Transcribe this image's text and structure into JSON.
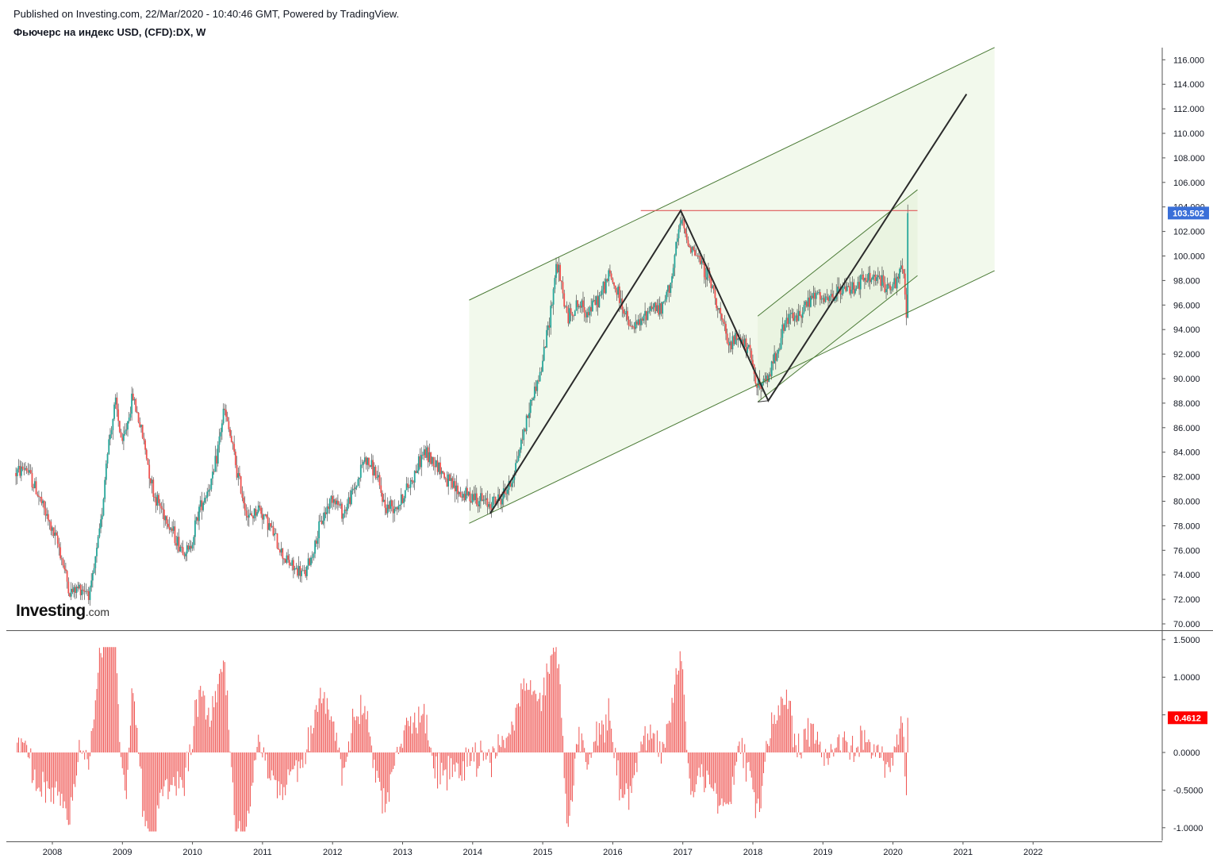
{
  "header": {
    "published": "Published on Investing.com, 22/Mar/2020 - 10:40:46 GMT, Powered by TradingView.",
    "symbol": "Фьючерс на индекс USD, (CFD):DX, W"
  },
  "logo": {
    "main": "Investing",
    "suffix": ".com"
  },
  "colors": {
    "up_candle": "#26a69a",
    "down_candle": "#ef5350",
    "channel_line": "#4a7a35",
    "channel_fill": "#eef7e6",
    "resistance_line": "#e05a5a",
    "pattern_line": "#2b2b2b",
    "price_badge": "#3a6fd8",
    "osc_badge": "#ff0000",
    "osc_bars": "#ef5350"
  },
  "chart_data": [
    {
      "type": "candlestick",
      "name": "Фьючерс на индекс USD, (CFD):DX, W",
      "timeframe": "W",
      "ylim": [
        69.5,
        117.2
      ],
      "xlim": [
        2007.45,
        2023.0
      ],
      "yticks": [
        70,
        72,
        74,
        76,
        78,
        80,
        82,
        84,
        86,
        88,
        90,
        92,
        94,
        96,
        98,
        100,
        102,
        104,
        106,
        108,
        110,
        112,
        114,
        116
      ],
      "ytick_labels": [
        "70.000",
        "72.000",
        "74.000",
        "76.000",
        "78.000",
        "80.000",
        "82.000",
        "84.000",
        "86.000",
        "88.000",
        "90.000",
        "92.000",
        "94.000",
        "96.000",
        "98.000",
        "100.000",
        "102.000",
        "104.000",
        "106.000",
        "108.000",
        "110.000",
        "112.000",
        "114.000",
        "116.000"
      ],
      "xticks": [
        2008,
        2009,
        2010,
        2011,
        2012,
        2013,
        2014,
        2015,
        2016,
        2017,
        2018,
        2019,
        2020,
        2021,
        2022
      ],
      "xtick_labels": [
        "2008",
        "2009",
        "2010",
        "2011",
        "2012",
        "2013",
        "2014",
        "2015",
        "2016",
        "2017",
        "2018",
        "2019",
        "2020",
        "2021",
        "2022"
      ],
      "last_price": 103.502,
      "last_price_label": "103.502",
      "price_path": [
        [
          2007.48,
          82.3
        ],
        [
          2007.62,
          82.8
        ],
        [
          2007.8,
          80.5
        ],
        [
          2008.0,
          77.5
        ],
        [
          2008.1,
          76.2
        ],
        [
          2008.25,
          72.5
        ],
        [
          2008.4,
          73.0
        ],
        [
          2008.55,
          72.6
        ],
        [
          2008.7,
          78.5
        ],
        [
          2008.78,
          84.0
        ],
        [
          2008.9,
          88.0
        ],
        [
          2009.0,
          84.5
        ],
        [
          2009.15,
          88.6
        ],
        [
          2009.3,
          85.0
        ],
        [
          2009.45,
          80.5
        ],
        [
          2009.6,
          79.0
        ],
        [
          2009.8,
          76.5
        ],
        [
          2009.95,
          75.8
        ],
        [
          2010.1,
          79.5
        ],
        [
          2010.3,
          82.0
        ],
        [
          2010.45,
          87.5
        ],
        [
          2010.55,
          85.0
        ],
        [
          2010.65,
          82.0
        ],
        [
          2010.8,
          78.5
        ],
        [
          2010.95,
          79.5
        ],
        [
          2011.1,
          78.0
        ],
        [
          2011.3,
          75.5
        ],
        [
          2011.45,
          74.5
        ],
        [
          2011.6,
          74.0
        ],
        [
          2011.7,
          75.5
        ],
        [
          2011.85,
          78.5
        ],
        [
          2012.0,
          80.5
        ],
        [
          2012.15,
          79.0
        ],
        [
          2012.35,
          81.5
        ],
        [
          2012.45,
          83.5
        ],
        [
          2012.6,
          82.5
        ],
        [
          2012.75,
          79.5
        ],
        [
          2012.95,
          79.8
        ],
        [
          2013.15,
          82.0
        ],
        [
          2013.3,
          84.0
        ],
        [
          2013.5,
          83.0
        ],
        [
          2013.65,
          81.5
        ],
        [
          2013.85,
          80.5
        ],
        [
          2014.0,
          80.5
        ],
        [
          2014.2,
          79.8
        ],
        [
          2014.4,
          80.2
        ],
        [
          2014.55,
          81.5
        ],
        [
          2014.7,
          85.0
        ],
        [
          2014.85,
          88.5
        ],
        [
          2014.97,
          90.5
        ],
        [
          2015.1,
          95.0
        ],
        [
          2015.2,
          99.5
        ],
        [
          2015.35,
          95.0
        ],
        [
          2015.5,
          96.0
        ],
        [
          2015.65,
          95.5
        ],
        [
          2015.8,
          96.5
        ],
        [
          2015.95,
          98.5
        ],
        [
          2016.1,
          96.5
        ],
        [
          2016.25,
          94.0
        ],
        [
          2016.4,
          94.5
        ],
        [
          2016.55,
          96.0
        ],
        [
          2016.7,
          95.5
        ],
        [
          2016.85,
          98.5
        ],
        [
          2016.97,
          103.0
        ],
        [
          2017.05,
          101.5
        ],
        [
          2017.2,
          100.0
        ],
        [
          2017.35,
          98.5
        ],
        [
          2017.5,
          96.0
        ],
        [
          2017.65,
          92.5
        ],
        [
          2017.8,
          93.5
        ],
        [
          2017.95,
          92.0
        ],
        [
          2018.08,
          89.3
        ],
        [
          2018.2,
          89.8
        ],
        [
          2018.35,
          92.5
        ],
        [
          2018.5,
          95.0
        ],
        [
          2018.6,
          94.8
        ],
        [
          2018.75,
          96.0
        ],
        [
          2018.9,
          96.8
        ],
        [
          2019.05,
          96.2
        ],
        [
          2019.2,
          97.0
        ],
        [
          2019.4,
          97.5
        ],
        [
          2019.6,
          98.0
        ],
        [
          2019.75,
          98.3
        ],
        [
          2019.9,
          97.5
        ],
        [
          2020.05,
          97.5
        ],
        [
          2020.12,
          99.2
        ],
        [
          2020.17,
          97.8
        ],
        [
          2020.19,
          95.0
        ],
        [
          2020.21,
          98.5
        ],
        [
          2020.22,
          103.5
        ]
      ],
      "drawings": {
        "outer_channel": {
          "upper": [
            [
              2013.95,
              96.4
            ],
            [
              2021.45,
              117.0
            ]
          ],
          "lower": [
            [
              2013.95,
              78.2
            ],
            [
              2021.45,
              98.8
            ]
          ]
        },
        "inner_channel": {
          "upper": [
            [
              2018.07,
              95.1
            ],
            [
              2020.35,
              105.4
            ]
          ],
          "lower": [
            [
              2018.07,
              88.1
            ],
            [
              2020.35,
              98.4
            ]
          ]
        },
        "resistance": {
          "from": [
            2016.4,
            103.7
          ],
          "to": [
            2020.35,
            103.7
          ]
        },
        "pattern": [
          [
            2014.25,
            79.0
          ],
          [
            2016.97,
            103.7
          ],
          [
            2018.22,
            88.2
          ],
          [
            2021.05,
            113.2
          ]
        ]
      }
    },
    {
      "type": "bar",
      "name": "oscillator",
      "ylim": [
        -1.15,
        1.55
      ],
      "yticks": [
        -1.0,
        -0.5,
        0.0,
        0.5,
        1.0,
        1.5
      ],
      "ytick_labels": [
        "-1.0000",
        "-0.5000",
        "0.0000",
        "0.5000",
        "1.0000",
        "1.5000"
      ],
      "last_value": 0.4612,
      "last_value_label": "0.4612"
    }
  ]
}
